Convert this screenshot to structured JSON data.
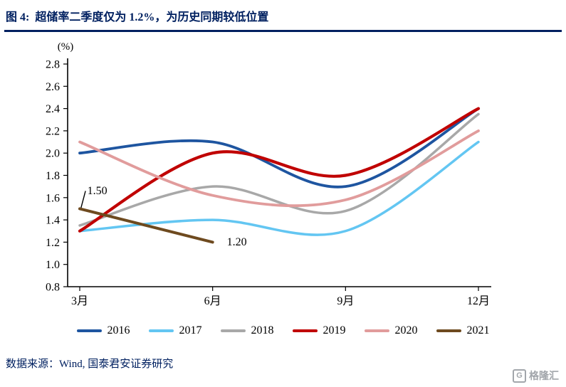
{
  "title": "图 4:  超储率二季度仅为 1.2%，为历史同期较低位置",
  "source": "数据来源：Wind, 国泰君安证券研究",
  "logo": {
    "mark": "G",
    "text": "格隆汇"
  },
  "colors": {
    "title_navy": "#002060",
    "axis": "#000000"
  },
  "chart_data": {
    "type": "line",
    "unit_label": "(%)",
    "x": [
      3,
      6,
      9,
      12
    ],
    "x_tick_labels": [
      "3月",
      "6月",
      "9月",
      "12月"
    ],
    "ylim": [
      0.8,
      2.8
    ],
    "y_tick_step": 0.2,
    "grid": false,
    "legend_position": "bottom",
    "series": [
      {
        "name": "2016",
        "color": "#1E55A0",
        "width": 3.8,
        "values": [
          2.0,
          2.1,
          1.7,
          2.4
        ]
      },
      {
        "name": "2017",
        "color": "#63C6F2",
        "width": 3.5,
        "values": [
          1.3,
          1.4,
          1.3,
          2.1
        ]
      },
      {
        "name": "2018",
        "color": "#A8A8A8",
        "width": 3.5,
        "values": [
          1.35,
          1.7,
          1.48,
          2.35
        ]
      },
      {
        "name": "2019",
        "color": "#C00000",
        "width": 4.2,
        "values": [
          1.3,
          2.0,
          1.8,
          2.4
        ]
      },
      {
        "name": "2020",
        "color": "#E19C9C",
        "width": 3.8,
        "values": [
          2.1,
          1.62,
          1.58,
          2.2
        ]
      },
      {
        "name": "2021",
        "color": "#6E4A1F",
        "width": 4.0,
        "values": [
          1.5,
          1.2,
          null,
          null
        ]
      }
    ],
    "annotations": [
      {
        "text": "1.50",
        "x": 3.17,
        "y": 1.63,
        "leader": {
          "from": [
            3.03,
            1.51
          ],
          "to": [
            3.13,
            1.66
          ]
        }
      },
      {
        "text": "1.20",
        "x": 6.32,
        "y": 1.17
      }
    ]
  }
}
